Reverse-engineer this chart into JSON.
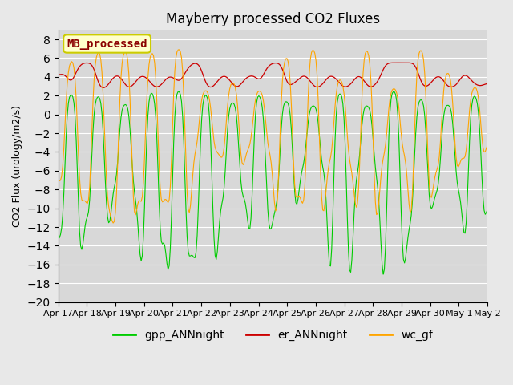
{
  "title": "Mayberry processed CO2 Fluxes",
  "ylabel": "CO2 Flux (urology/m2/s)",
  "ylim": [
    -20,
    9
  ],
  "yticks": [
    -20,
    -18,
    -16,
    -14,
    -12,
    -10,
    -8,
    -6,
    -4,
    -2,
    0,
    2,
    4,
    6,
    8
  ],
  "background_color": "#e8e8e8",
  "plot_bg_color": "#d8d8d8",
  "legend_box_color": "#ffffcc",
  "legend_box_edge": "#cccc00",
  "legend_label_color": "#8b0000",
  "colors": {
    "gpp": "#00cc00",
    "er": "#cc0000",
    "wc": "#ffa500"
  },
  "x_labels": [
    "Apr 17",
    "Apr 18",
    "Apr 19",
    "Apr 20",
    "Apr 21",
    "Apr 22",
    "Apr 23",
    "Apr 24",
    "Apr 25",
    "Apr 26",
    "Apr 27",
    "Apr 28",
    "Apr 29",
    "Apr 30",
    "May 1",
    "May 2"
  ],
  "n_points": 384,
  "seed": 42
}
